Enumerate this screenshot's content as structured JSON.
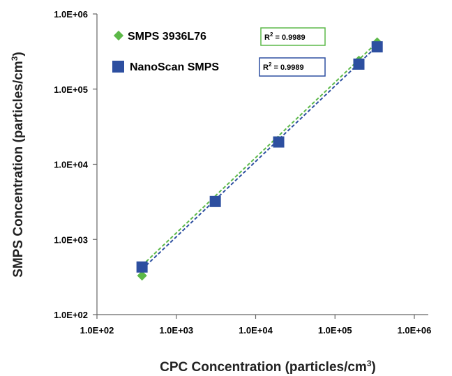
{
  "chart_data": {
    "type": "scatter",
    "title": "",
    "xlabel": "CPC Concentration",
    "xlabel_unit_pre": "(particles/cm",
    "xlabel_unit_sup": "3",
    "xlabel_unit_post": ")",
    "ylabel": "SMPS Concentration",
    "ylabel_unit_pre": "(particles/cm",
    "ylabel_unit_sup": "3",
    "ylabel_unit_post": ")",
    "xscale": "log",
    "yscale": "log",
    "xlim": [
      100,
      1000000
    ],
    "ylim": [
      100,
      1000000
    ],
    "x_tick_values": [
      100,
      1000,
      10000,
      100000,
      1000000
    ],
    "y_tick_values": [
      100,
      1000,
      10000,
      100000,
      1000000
    ],
    "x_ticks": [
      "1.0E+02",
      "1.0E+03",
      "1.0E+04",
      "1.0E+05",
      "1.0E+06"
    ],
    "y_ticks": [
      "1.0E+02",
      "1.0E+03",
      "1.0E+04",
      "1.0E+05",
      "1.0E+06"
    ],
    "grid": false,
    "legend_position": "top-left",
    "series": [
      {
        "name": "SMPS 3936L76",
        "color": "#5cb848",
        "marker": "diamond",
        "x": [
          370,
          3100,
          19500,
          200000,
          340000
        ],
        "y": [
          330,
          3300,
          20500,
          240000,
          420000
        ],
        "trendline": {
          "x": [
            370,
            340000
          ],
          "y": [
            450,
            420000
          ],
          "style": "dashed"
        },
        "r2_label": "R",
        "r2_sup": "2",
        "r2_value": " = 0.9989"
      },
      {
        "name": "NanoScan SMPS",
        "color": "#2d4fa0",
        "marker": "square",
        "x": [
          370,
          3100,
          19500,
          200000,
          340000
        ],
        "y": [
          430,
          3200,
          19800,
          215000,
          365000
        ],
        "trendline": {
          "x": [
            370,
            340000
          ],
          "y": [
            400,
            375000
          ],
          "style": "dashed"
        },
        "r2_label": "R",
        "r2_sup": "2",
        "r2_value": " = 0.9989"
      }
    ]
  }
}
